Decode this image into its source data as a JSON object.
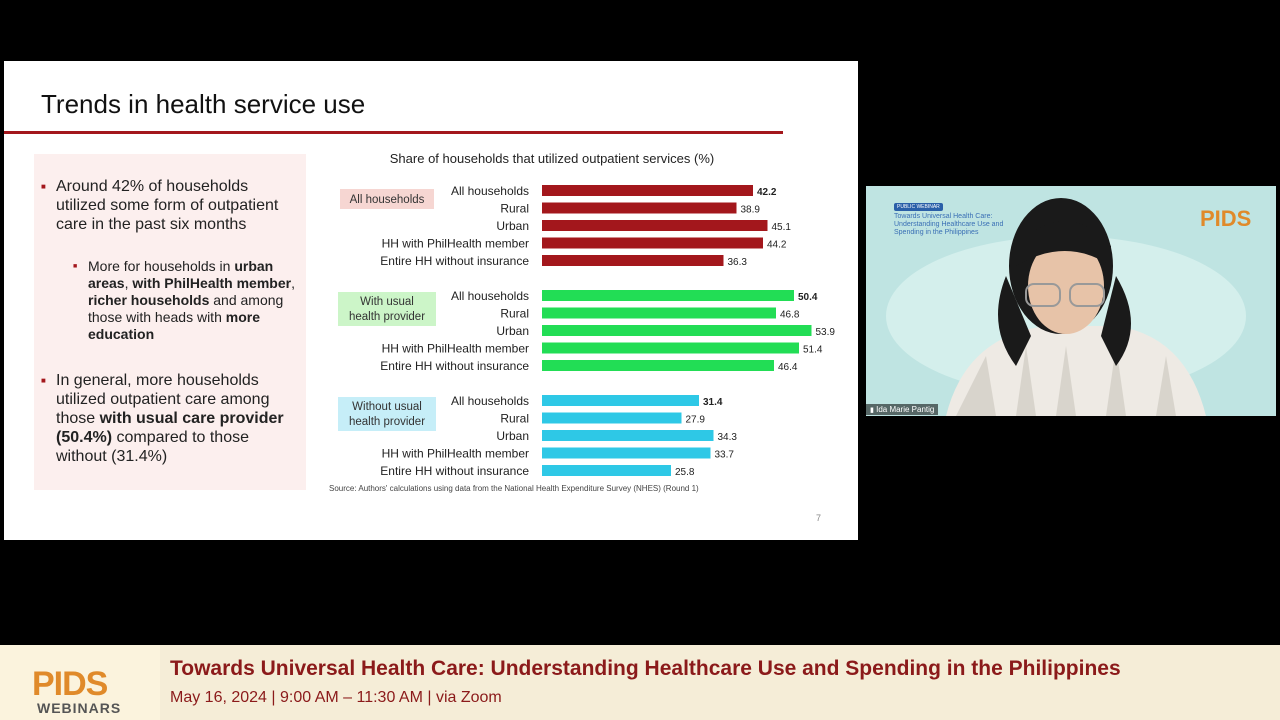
{
  "slide": {
    "title": "Trends in health service use",
    "page_number": "7",
    "bullets": {
      "b1": "Around 42% of households utilized some form of outpatient care in the past six months",
      "b2_html": "More for households in <b>urban areas</b>, <b>with PhilHealth member</b>, <b>richer households</b> and among those with heads with <b>more education</b>",
      "b3_html": "In general, more households utilized outpatient care among those <b>with usual care provider (50.4%)</b> compared to those without (31.4%)"
    },
    "source": "Source: Authors' calculations using data from the National Health Expenditure Survey (NHES) (Round 1)"
  },
  "chart_data": {
    "type": "bar",
    "orientation": "horizontal",
    "title": "Share of households that utilized outpatient services (%)",
    "categories": [
      "All households",
      "Rural",
      "Urban",
      "HH with PhilHealth member",
      "Entire HH without insurance"
    ],
    "series": [
      {
        "name": "All households",
        "color": "#a3171c",
        "label_bg": "#f6d6d2",
        "values": [
          42.2,
          38.9,
          45.1,
          44.2,
          36.3
        ]
      },
      {
        "name": "With usual health provider",
        "color": "#22dd55",
        "label_bg": "#ccf5c8",
        "values": [
          50.4,
          46.8,
          53.9,
          51.4,
          46.4
        ]
      },
      {
        "name": "Without usual health provider",
        "color": "#2ec8e6",
        "label_bg": "#c6eef8",
        "values": [
          31.4,
          27.9,
          34.3,
          33.7,
          25.8
        ]
      }
    ],
    "xlim": [
      0,
      56
    ],
    "grid": false
  },
  "camera": {
    "tag": "PUBLIC WEBINAR",
    "title": "Towards Universal Health Care: Understanding Healthcare Use and Spending in the Philippines",
    "logo": "PIDS",
    "participant_name": "Ida Marie Pantig"
  },
  "banner": {
    "logo": "PIDS",
    "logo_sub": "WEBINARS",
    "title": "Towards Universal Health Care: Understanding Healthcare Use and Spending in the Philippines",
    "subtitle": "May 16, 2024 | 9:00 AM – 11:30 AM |  via Zoom"
  }
}
